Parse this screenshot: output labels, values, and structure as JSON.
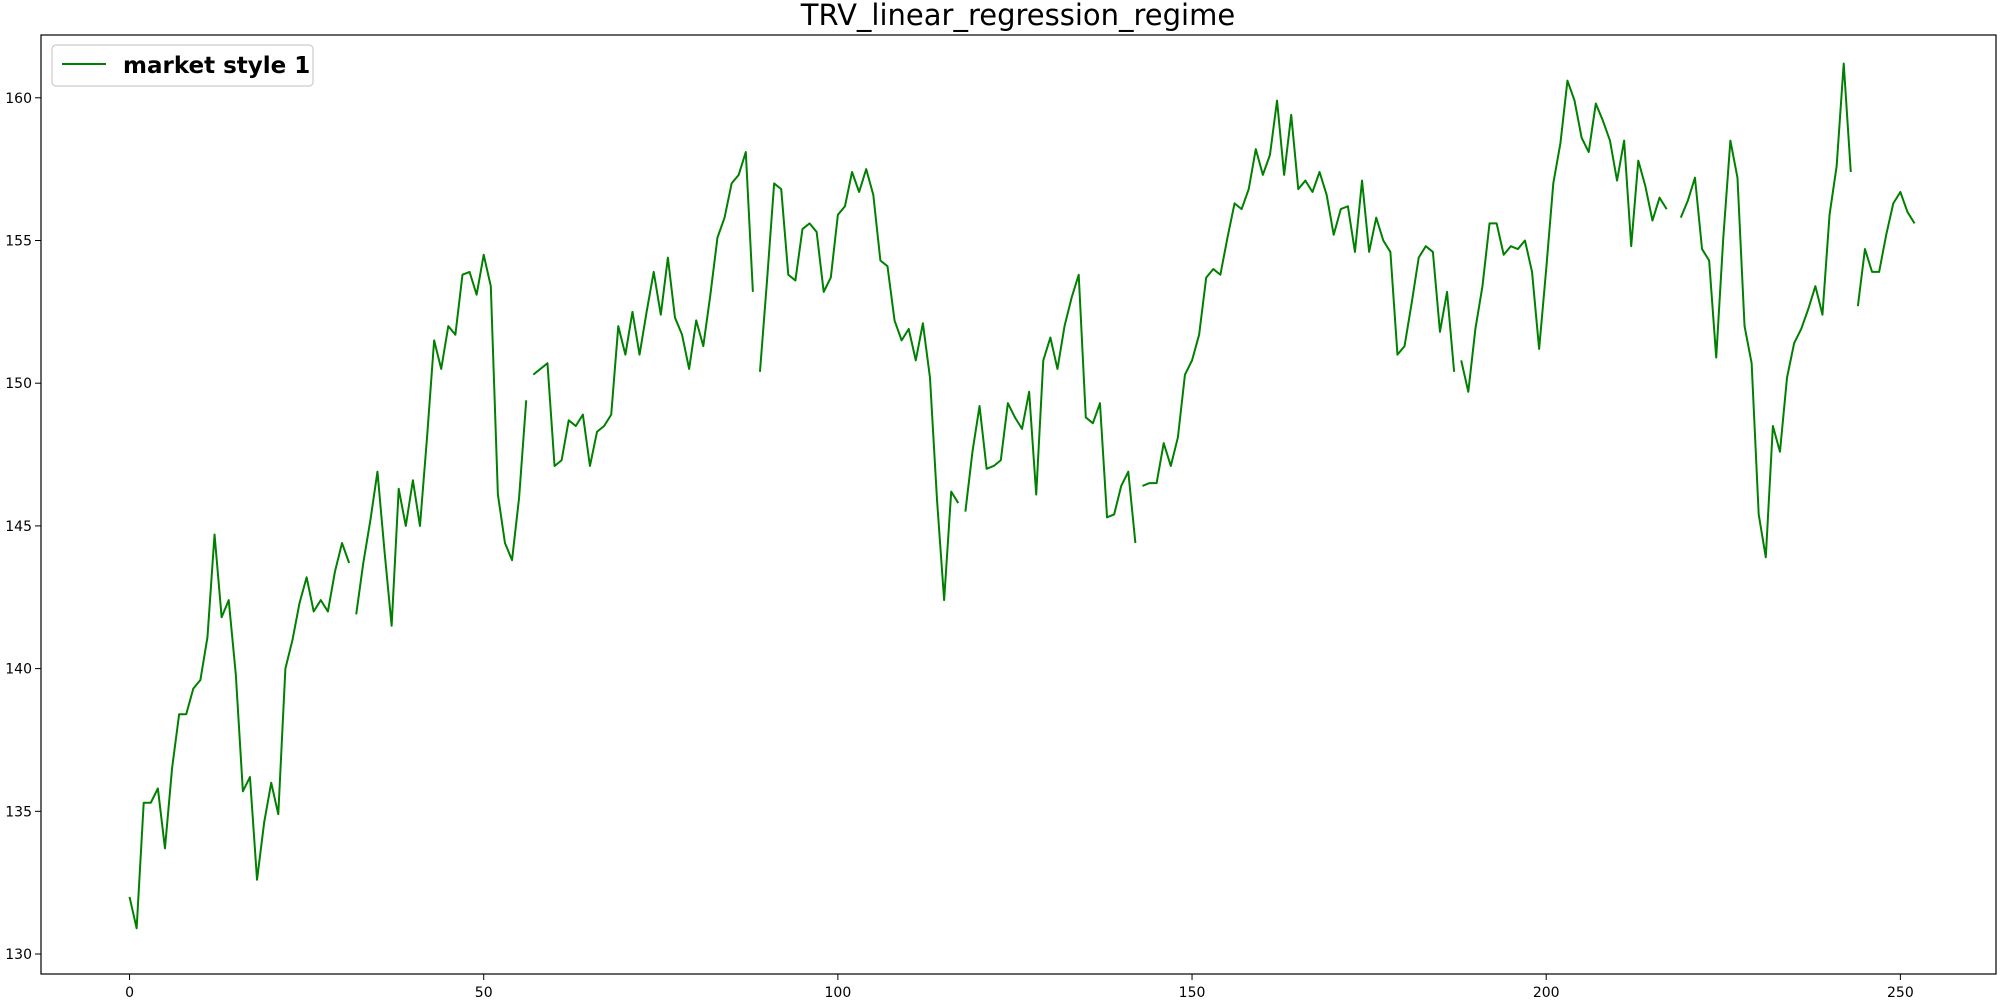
{
  "chart_data": {
    "type": "line",
    "title": "TRV_linear_regression_regime",
    "xlabel": "",
    "ylabel": "",
    "xlim": [
      -12.5,
      263.5
    ],
    "ylim": [
      129.3,
      162.2
    ],
    "xticks": [
      0,
      50,
      100,
      150,
      200,
      250
    ],
    "yticks": [
      130,
      135,
      140,
      145,
      150,
      155,
      160
    ],
    "grid": false,
    "legend_position": "top-left",
    "series": [
      {
        "name": "market style 1",
        "color": "#008000",
        "segments": [
          {
            "x_start": 0,
            "values": [
              132.0,
              130.9,
              135.3,
              135.3,
              135.8,
              133.7,
              136.5,
              138.4,
              138.4,
              139.3,
              139.6,
              141.1,
              144.7,
              141.8,
              142.4,
              139.8,
              135.7,
              136.2,
              132.6,
              134.6,
              136.0,
              134.9,
              140.0,
              141.0,
              142.3,
              143.2,
              142.0,
              142.4,
              142.0,
              143.4,
              144.4,
              143.7
            ]
          },
          {
            "x_start": 32,
            "values": [
              141.9,
              143.7,
              145.2,
              146.9,
              144.1,
              141.5,
              146.3,
              145.0,
              146.6,
              145.0,
              148.1,
              151.5,
              150.5,
              152.0,
              151.7,
              153.8,
              153.9,
              153.1,
              154.5,
              153.4,
              146.1,
              144.4,
              143.8,
              146.0,
              149.4
            ]
          },
          {
            "x_start": 57,
            "values": [
              150.3,
              150.5,
              150.7,
              147.1,
              147.3,
              148.7,
              148.5,
              148.9,
              147.1,
              148.3,
              148.5,
              148.9,
              152.0,
              151.0,
              152.5,
              151.0,
              152.5,
              153.9,
              152.4,
              154.4,
              152.3,
              151.7,
              150.5,
              152.2,
              151.3,
              153.1,
              155.1,
              155.8,
              157.0,
              157.3,
              158.1,
              153.2
            ]
          },
          {
            "x_start": 89,
            "values": [
              150.4,
              153.6,
              157.0,
              156.8,
              153.8,
              153.6,
              155.4,
              155.6,
              155.3,
              153.2,
              153.7,
              155.9,
              156.2,
              157.4,
              156.7,
              157.5,
              156.6,
              154.3,
              154.1,
              152.2,
              151.5,
              151.9,
              150.8,
              152.1,
              150.2,
              145.9,
              142.4,
              146.2,
              145.8
            ]
          },
          {
            "x_start": 118,
            "values": [
              145.5,
              147.6,
              149.2,
              147.0,
              147.1,
              147.3,
              149.3,
              148.8,
              148.4,
              149.7,
              146.1,
              150.8,
              151.6,
              150.5,
              152.0,
              153.0,
              153.8,
              148.8,
              148.6,
              149.3,
              145.3,
              145.4,
              146.4,
              146.9,
              144.4
            ]
          },
          {
            "x_start": 143,
            "values": [
              146.4,
              146.5,
              146.5,
              147.9,
              147.1,
              148.1,
              150.3,
              150.8,
              151.7,
              153.7,
              154.0,
              153.8,
              155.1,
              156.3,
              156.1,
              156.8,
              158.2,
              157.3,
              158.0,
              159.9,
              157.3,
              159.4,
              156.8,
              157.1,
              156.7,
              157.4,
              156.6,
              155.2,
              156.1,
              156.2,
              154.6,
              157.1,
              154.6,
              155.8,
              155.0,
              154.6,
              151.0,
              151.3,
              152.8,
              154.4,
              154.8,
              154.6,
              151.8,
              153.2,
              150.4
            ]
          },
          {
            "x_start": 188,
            "values": [
              150.8,
              149.7,
              151.9,
              153.4,
              155.6,
              155.6,
              154.5,
              154.8,
              154.7,
              155.0,
              153.9,
              151.2,
              154.0,
              157.0,
              158.4,
              160.6,
              159.9,
              158.6,
              158.1,
              159.8,
              159.2,
              158.5,
              157.1,
              158.5,
              154.8,
              157.8,
              156.9,
              155.7,
              156.5,
              156.1
            ]
          },
          {
            "x_start": 219,
            "values": [
              155.8,
              156.4,
              157.2,
              154.7,
              154.3,
              150.9,
              155.1,
              158.5,
              157.2,
              152.0,
              150.7,
              145.4,
              143.9,
              148.5,
              147.6,
              150.2,
              151.4,
              151.9,
              152.6,
              153.4,
              152.4,
              155.9,
              157.6,
              161.2,
              157.4
            ]
          },
          {
            "x_start": 244,
            "values": [
              152.7,
              154.7,
              153.9,
              153.9,
              155.2,
              156.3,
              156.7,
              156.0,
              155.6
            ]
          }
        ]
      }
    ]
  }
}
